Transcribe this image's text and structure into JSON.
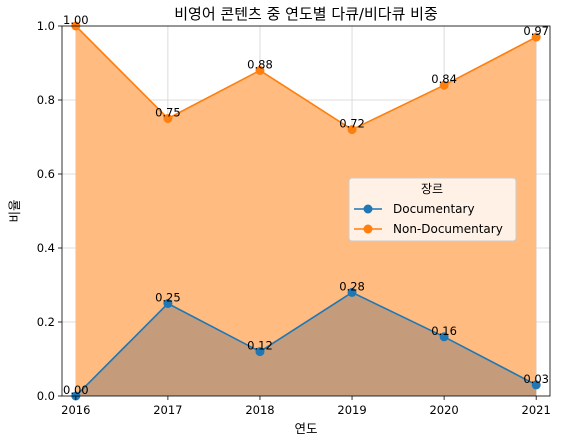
{
  "chart_data": {
    "type": "area",
    "title": "비영어 콘텐츠 중 연도별 다큐/비다큐 비중",
    "xlabel": "연도",
    "ylabel": "비율",
    "x": [
      "2016",
      "2017",
      "2018",
      "2019",
      "2020",
      "2021"
    ],
    "xlim": [
      2015.85,
      2021.15
    ],
    "ylim": [
      0,
      1.0
    ],
    "yticks": [
      "0.0",
      "0.2",
      "0.4",
      "0.6",
      "0.8",
      "1.0"
    ],
    "grid": true,
    "legend": {
      "title": "장르",
      "placement": "center-right"
    },
    "series": [
      {
        "name": "Documentary",
        "values": [
          0.0,
          0.25,
          0.12,
          0.28,
          0.16,
          0.03
        ],
        "labels": [
          "0.00",
          "0.25",
          "0.12",
          "0.28",
          "0.16",
          "0.03"
        ],
        "color": "#1f77b4",
        "fill": "#c49c7c"
      },
      {
        "name": "Non-Documentary",
        "values": [
          1.0,
          0.75,
          0.88,
          0.72,
          0.84,
          0.97
        ],
        "labels": [
          "1.00",
          "0.75",
          "0.88",
          "0.72",
          "0.84",
          "0.97"
        ],
        "color": "#ff7f0e",
        "fill": "#ffbb80"
      }
    ]
  }
}
